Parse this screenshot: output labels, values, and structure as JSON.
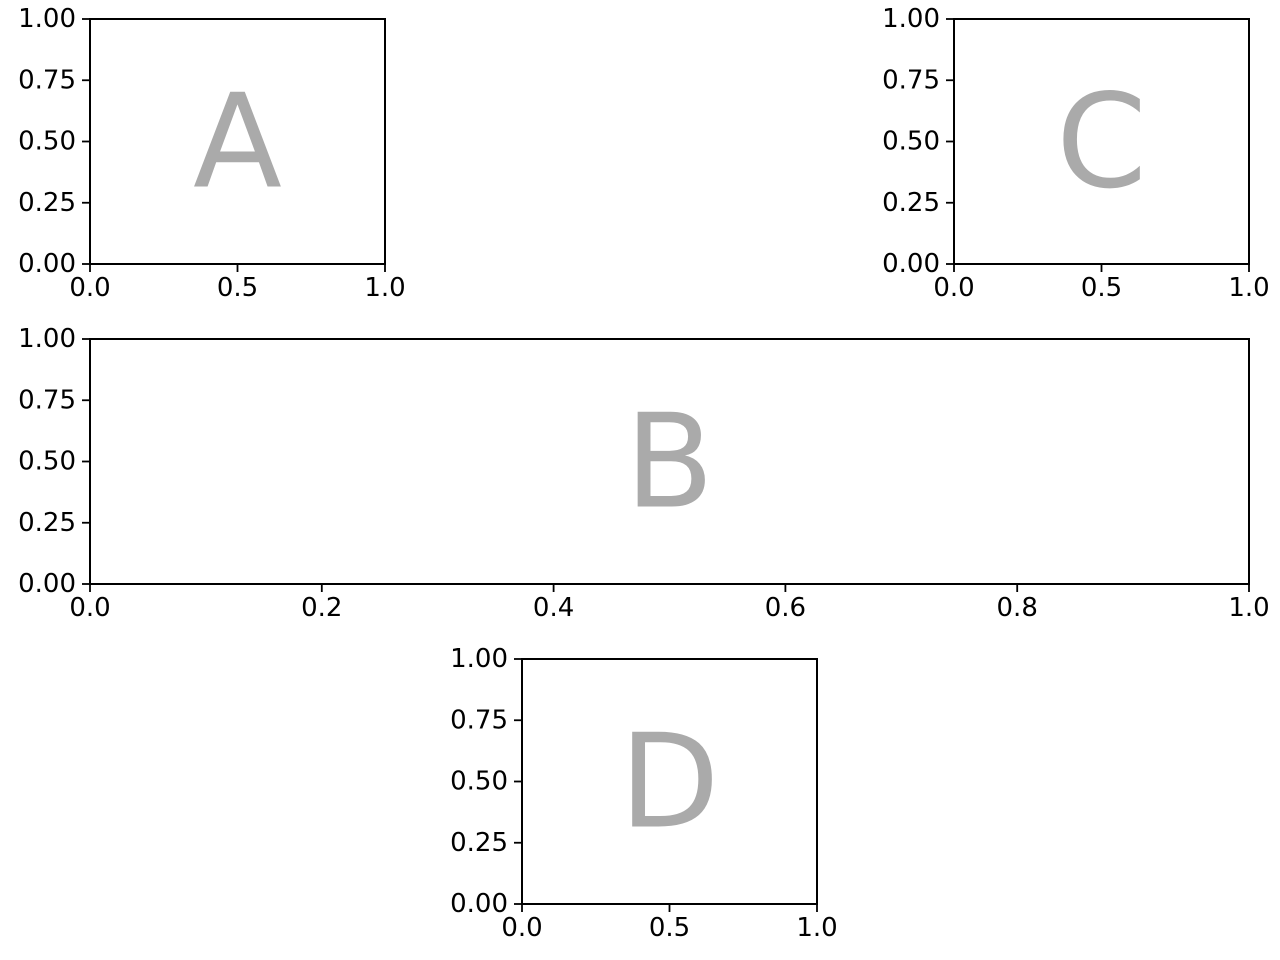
{
  "chart_data": [
    {
      "type": "empty-axes",
      "panel_label": "A",
      "xlim": [
        0,
        1
      ],
      "ylim": [
        0,
        1
      ],
      "xticks": [
        0.0,
        0.5,
        1.0
      ],
      "xtick_labels": [
        "0.0",
        "0.5",
        "1.0"
      ],
      "yticks": [
        0.0,
        0.25,
        0.5,
        0.75,
        1.0
      ],
      "ytick_labels": [
        "0.00",
        "0.25",
        "0.50",
        "0.75",
        "1.00"
      ],
      "grid": false
    },
    {
      "type": "empty-axes",
      "panel_label": "C",
      "xlim": [
        0,
        1
      ],
      "ylim": [
        0,
        1
      ],
      "xticks": [
        0.0,
        0.5,
        1.0
      ],
      "xtick_labels": [
        "0.0",
        "0.5",
        "1.0"
      ],
      "yticks": [
        0.0,
        0.25,
        0.5,
        0.75,
        1.0
      ],
      "ytick_labels": [
        "0.00",
        "0.25",
        "0.50",
        "0.75",
        "1.00"
      ],
      "grid": false
    },
    {
      "type": "empty-axes",
      "panel_label": "B",
      "xlim": [
        0,
        1
      ],
      "ylim": [
        0,
        1
      ],
      "xticks": [
        0.0,
        0.2,
        0.4,
        0.6,
        0.8,
        1.0
      ],
      "xtick_labels": [
        "0.0",
        "0.2",
        "0.4",
        "0.6",
        "0.8",
        "1.0"
      ],
      "yticks": [
        0.0,
        0.25,
        0.5,
        0.75,
        1.0
      ],
      "ytick_labels": [
        "0.00",
        "0.25",
        "0.50",
        "0.75",
        "1.00"
      ],
      "grid": false
    },
    {
      "type": "empty-axes",
      "panel_label": "D",
      "xlim": [
        0,
        1
      ],
      "ylim": [
        0,
        1
      ],
      "xticks": [
        0.0,
        0.5,
        1.0
      ],
      "xtick_labels": [
        "0.0",
        "0.5",
        "1.0"
      ],
      "yticks": [
        0.0,
        0.25,
        0.5,
        0.75,
        1.0
      ],
      "ytick_labels": [
        "0.00",
        "0.25",
        "0.50",
        "0.75",
        "1.00"
      ],
      "grid": false
    }
  ],
  "colors": {
    "panel_label": "#aaaaaa",
    "axes": "#000000",
    "background": "#ffffff"
  }
}
